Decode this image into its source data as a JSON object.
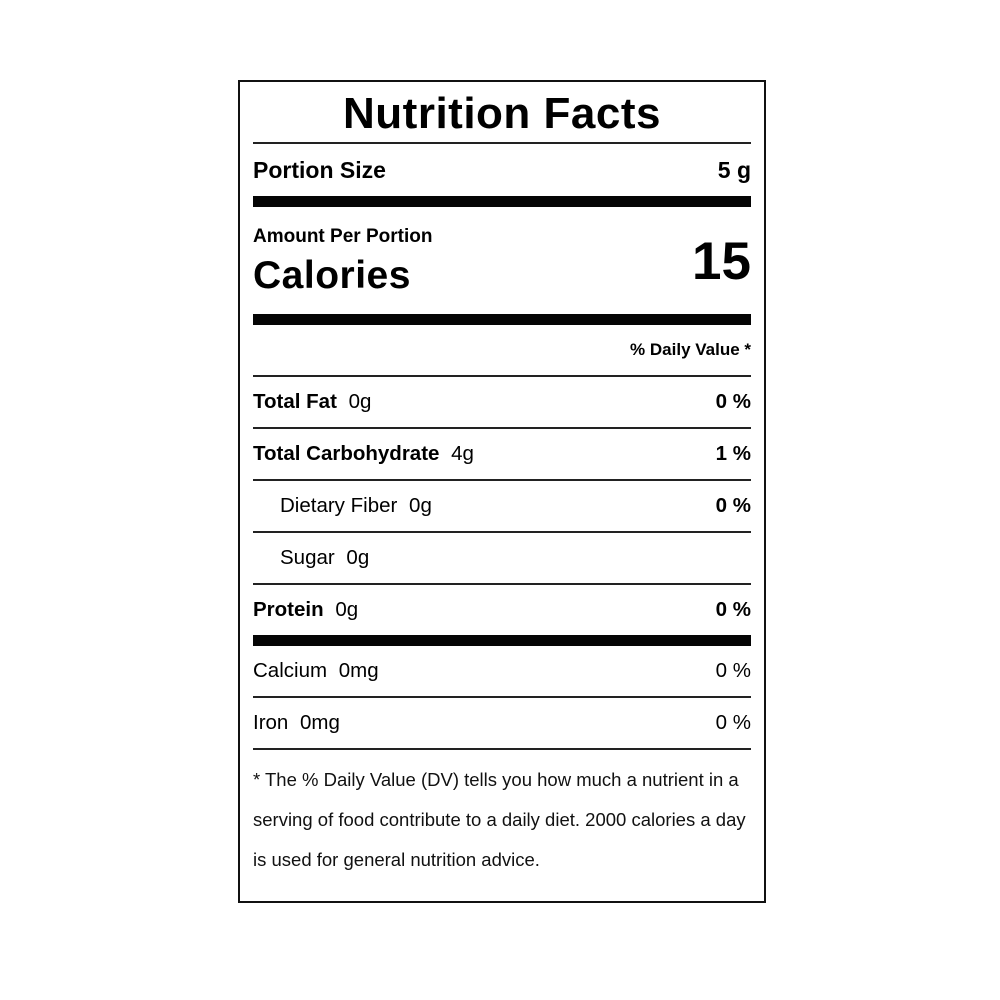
{
  "label": {
    "title": "Nutrition Facts",
    "portion": {
      "label": "Portion Size",
      "value": "5 g"
    },
    "amount_per_portion": "Amount Per Portion",
    "calories": {
      "label": "Calories",
      "value": "15"
    },
    "daily_value_header": "% Daily Value *",
    "rows": [
      {
        "name": "Total Fat",
        "amount": "0g",
        "dv": "0 %"
      },
      {
        "name": "Total Carbohydrate",
        "amount": "4g",
        "dv": "1 %"
      },
      {
        "name": "Dietary Fiber",
        "amount": "0g",
        "dv": "0 %"
      },
      {
        "name": "Sugar",
        "amount": "0g",
        "dv": ""
      },
      {
        "name": "Protein",
        "amount": "0g",
        "dv": "0 %"
      },
      {
        "name": "Calcium",
        "amount": "0mg",
        "dv": "0 %"
      },
      {
        "name": "Iron",
        "amount": "0mg",
        "dv": "0 %"
      }
    ],
    "footnote": "* The % Daily Value (DV) tells you how much a nutrient in a serving of food contribute to a daily diet. 2000 calories a day is used for general nutrition advice."
  },
  "colors": {
    "text": "#000000",
    "border": "#111111",
    "thick_bar": "#050505",
    "separator": "#222222",
    "background": "#ffffff"
  }
}
